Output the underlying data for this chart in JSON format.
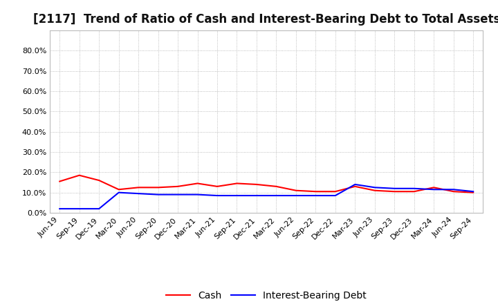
{
  "title": "[2117]  Trend of Ratio of Cash and Interest-Bearing Debt to Total Assets",
  "x_labels": [
    "Jun-19",
    "Sep-19",
    "Dec-19",
    "Mar-20",
    "Jun-20",
    "Sep-20",
    "Dec-20",
    "Mar-21",
    "Jun-21",
    "Sep-21",
    "Dec-21",
    "Mar-22",
    "Jun-22",
    "Sep-22",
    "Dec-22",
    "Mar-23",
    "Jun-23",
    "Sep-23",
    "Dec-23",
    "Mar-24",
    "Jun-24",
    "Sep-24"
  ],
  "cash": [
    15.5,
    18.5,
    16.0,
    11.5,
    12.5,
    12.5,
    13.0,
    14.5,
    13.0,
    14.5,
    14.0,
    13.0,
    11.0,
    10.5,
    10.5,
    13.0,
    11.0,
    10.5,
    10.5,
    12.5,
    10.5,
    10.0
  ],
  "interest_bearing_debt": [
    2.0,
    2.0,
    2.0,
    10.0,
    9.5,
    9.0,
    9.0,
    9.0,
    8.5,
    8.5,
    8.5,
    8.5,
    8.5,
    8.5,
    8.5,
    14.0,
    12.5,
    12.0,
    12.0,
    11.5,
    11.5,
    10.5
  ],
  "cash_color": "#ff0000",
  "debt_color": "#0000ff",
  "ylim": [
    0,
    90
  ],
  "yticks": [
    0,
    10,
    20,
    30,
    40,
    50,
    60,
    70,
    80
  ],
  "yticklabels": [
    "0.0%",
    "10.0%",
    "20.0%",
    "30.0%",
    "40.0%",
    "50.0%",
    "60.0%",
    "70.0%",
    "80.0%"
  ],
  "grid_color": "#aaaaaa",
  "background_color": "#ffffff",
  "plot_bg_color": "#ffffff",
  "legend_cash": "Cash",
  "legend_debt": "Interest-Bearing Debt",
  "title_fontsize": 12,
  "tick_fontsize": 8,
  "legend_fontsize": 10
}
